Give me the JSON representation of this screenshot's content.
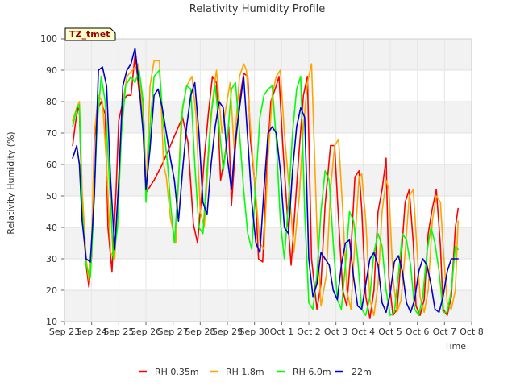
{
  "chart_data": {
    "type": "line",
    "title": "Relativity Humidity Profile",
    "xlabel": "Time",
    "ylabel": "Relativity Humidity (%)",
    "ylim": [
      10,
      100
    ],
    "yticks": [
      10,
      20,
      30,
      40,
      50,
      60,
      70,
      80,
      90,
      100
    ],
    "xlim": [
      0,
      15
    ],
    "xtick_labels": [
      "Sep 23",
      "Sep 24",
      "Sep 25",
      "Sep 26",
      "Sep 27",
      "Sep 28",
      "Sep 29",
      "Sep 30",
      "Oct 1",
      "Oct 2",
      "Oct 3",
      "Oct 4",
      "Oct 5",
      "Oct 6",
      "Oct 7",
      "Oct 8"
    ],
    "x_units": "days since Sep 23",
    "station_label": "TZ_tmet",
    "grid": "horizontal bands",
    "legend": "bottom-center",
    "series": [
      {
        "name": "RH 0.35m",
        "color": "#ff0000",
        "x": [
          0.3,
          0.4,
          0.5,
          0.55,
          0.65,
          0.8,
          0.9,
          1.0,
          1.1,
          1.2,
          1.35,
          1.5,
          1.6,
          1.75,
          1.9,
          2.0,
          2.15,
          2.3,
          2.45,
          2.6,
          2.75,
          2.9,
          3.0,
          3.3,
          3.6,
          3.9,
          4.15,
          4.35,
          4.55,
          4.75,
          4.9,
          5.05,
          5.15,
          5.3,
          5.45,
          5.6,
          5.75,
          5.9,
          6.05,
          6.15,
          6.3,
          6.45,
          6.6,
          6.75,
          6.85,
          7.0,
          7.15,
          7.3,
          7.45,
          7.6,
          7.8,
          7.9,
          8.05,
          8.2,
          8.35,
          8.5,
          8.65,
          8.8,
          8.95,
          9.1,
          9.3,
          9.45,
          9.6,
          9.8,
          9.95,
          10.1,
          10.25,
          10.4,
          10.55,
          10.7,
          10.85,
          10.95,
          11.1,
          11.25,
          11.4,
          11.55,
          11.7,
          11.85,
          11.95,
          12.1,
          12.25,
          12.4,
          12.55,
          12.7,
          12.85,
          12.95,
          13.1,
          13.25,
          13.4,
          13.55,
          13.7,
          13.85,
          13.95,
          14.1,
          14.25,
          14.4,
          14.5
        ],
        "y": [
          66,
          73,
          78,
          77,
          47,
          28,
          21,
          31,
          68,
          77,
          80,
          76,
          40,
          26,
          52,
          74,
          80,
          82,
          82,
          95,
          83,
          80,
          51,
          55,
          60,
          66,
          71,
          75,
          67,
          41,
          35,
          50,
          62,
          76,
          88,
          86,
          55,
          62,
          72,
          47,
          66,
          80,
          89,
          88,
          68,
          55,
          30,
          29,
          58,
          80,
          85,
          88,
          65,
          45,
          28,
          47,
          65,
          82,
          88,
          30,
          14,
          22,
          47,
          66,
          66,
          42,
          20,
          15,
          32,
          56,
          58,
          46,
          18,
          11,
          20,
          45,
          52,
          62,
          24,
          12,
          14,
          30,
          48,
          52,
          35,
          15,
          12,
          17,
          38,
          46,
          52,
          34,
          14,
          12,
          18,
          40,
          46
        ]
      },
      {
        "name": "RH 1.8m",
        "color": "#ffa500",
        "x": [
          0.3,
          0.45,
          0.55,
          0.65,
          0.8,
          0.9,
          1.0,
          1.1,
          1.25,
          1.4,
          1.55,
          1.7,
          1.85,
          2.0,
          2.15,
          2.3,
          2.5,
          2.7,
          2.85,
          3.0,
          3.15,
          3.3,
          3.5,
          3.65,
          3.75,
          3.9,
          4.1,
          4.3,
          4.5,
          4.7,
          4.85,
          5.0,
          5.15,
          5.3,
          5.45,
          5.6,
          5.8,
          5.95,
          6.1,
          6.25,
          6.45,
          6.6,
          6.7,
          6.85,
          7.0,
          7.2,
          7.35,
          7.5,
          7.65,
          7.8,
          7.95,
          8.1,
          8.3,
          8.45,
          8.65,
          8.8,
          8.95,
          9.1,
          9.3,
          9.45,
          9.65,
          9.8,
          9.95,
          10.1,
          10.25,
          10.4,
          10.55,
          10.7,
          10.85,
          10.95,
          11.1,
          11.25,
          11.4,
          11.55,
          11.7,
          11.85,
          11.95,
          12.1,
          12.25,
          12.4,
          12.55,
          12.7,
          12.85,
          12.95,
          13.1,
          13.25,
          13.4,
          13.55,
          13.7,
          13.85,
          13.95,
          14.1,
          14.25,
          14.4,
          14.5
        ],
        "y": [
          74,
          78,
          80,
          52,
          30,
          23,
          35,
          70,
          82,
          80,
          60,
          32,
          30,
          55,
          80,
          88,
          90,
          92,
          80,
          50,
          85,
          93,
          93,
          60,
          56,
          43,
          35,
          75,
          85,
          88,
          75,
          45,
          40,
          62,
          80,
          90,
          70,
          78,
          86,
          65,
          88,
          92,
          90,
          72,
          55,
          35,
          33,
          62,
          82,
          88,
          90,
          70,
          50,
          32,
          50,
          72,
          86,
          92,
          40,
          15,
          25,
          52,
          66,
          68,
          45,
          20,
          14,
          35,
          56,
          57,
          42,
          17,
          12,
          22,
          45,
          55,
          52,
          24,
          13,
          17,
          32,
          50,
          52,
          38,
          18,
          13,
          20,
          42,
          50,
          48,
          34,
          16,
          14,
          20,
          42
        ]
      },
      {
        "name": "RH 6.0m",
        "color": "#00ff00",
        "x": [
          0.3,
          0.45,
          0.55,
          0.65,
          0.8,
          0.95,
          1.05,
          1.2,
          1.35,
          1.5,
          1.65,
          1.8,
          1.95,
          2.1,
          2.25,
          2.45,
          2.6,
          2.75,
          2.9,
          3.0,
          3.15,
          3.3,
          3.5,
          3.65,
          3.8,
          3.9,
          4.05,
          4.2,
          4.35,
          4.5,
          4.65,
          4.8,
          4.95,
          5.1,
          5.25,
          5.4,
          5.55,
          5.7,
          5.85,
          6.0,
          6.15,
          6.3,
          6.45,
          6.6,
          6.75,
          6.9,
          7.05,
          7.2,
          7.35,
          7.5,
          7.65,
          7.8,
          7.95,
          8.1,
          8.25,
          8.4,
          8.55,
          8.7,
          8.85,
          9.0,
          9.15,
          9.3,
          9.45,
          9.6,
          9.75,
          9.9,
          10.05,
          10.2,
          10.35,
          10.5,
          10.65,
          10.8,
          10.95,
          11.1,
          11.25,
          11.4,
          11.55,
          11.7,
          11.85,
          12.0,
          12.15,
          12.3,
          12.45,
          12.6,
          12.75,
          12.9,
          13.05,
          13.2,
          13.35,
          13.5,
          13.65,
          13.8,
          13.95,
          14.1,
          14.25,
          14.4,
          14.5
        ],
        "y": [
          72,
          78,
          79,
          45,
          28,
          24,
          40,
          72,
          88,
          80,
          55,
          30,
          40,
          70,
          85,
          88,
          86,
          90,
          80,
          48,
          72,
          88,
          90,
          72,
          60,
          48,
          35,
          55,
          78,
          85,
          84,
          60,
          40,
          38,
          58,
          76,
          85,
          72,
          58,
          68,
          84,
          86,
          70,
          52,
          38,
          33,
          55,
          75,
          82,
          84,
          85,
          68,
          42,
          30,
          48,
          70,
          84,
          88,
          45,
          16,
          14,
          25,
          45,
          58,
          55,
          35,
          17,
          14,
          28,
          45,
          42,
          30,
          14,
          12,
          18,
          32,
          38,
          34,
          20,
          12,
          13,
          25,
          38,
          36,
          28,
          14,
          12,
          18,
          32,
          40,
          35,
          26,
          13,
          13,
          20,
          34,
          33
        ]
      },
      {
        "name": "22m",
        "color": "#0000cc",
        "x": [
          0.3,
          0.45,
          0.55,
          0.65,
          0.8,
          0.95,
          1.1,
          1.25,
          1.4,
          1.55,
          1.7,
          1.85,
          2.0,
          2.15,
          2.3,
          2.45,
          2.6,
          2.75,
          2.9,
          3.0,
          3.15,
          3.3,
          3.45,
          3.6,
          3.75,
          3.9,
          4.05,
          4.2,
          4.35,
          4.5,
          4.65,
          4.8,
          4.95,
          5.1,
          5.25,
          5.4,
          5.55,
          5.7,
          5.85,
          6.0,
          6.15,
          6.3,
          6.45,
          6.6,
          6.75,
          6.9,
          7.05,
          7.2,
          7.35,
          7.5,
          7.65,
          7.8,
          7.95,
          8.1,
          8.25,
          8.4,
          8.55,
          8.7,
          8.85,
          9.0,
          9.15,
          9.3,
          9.45,
          9.6,
          9.75,
          9.9,
          10.05,
          10.2,
          10.35,
          10.5,
          10.65,
          10.8,
          10.95,
          11.1,
          11.25,
          11.4,
          11.55,
          11.7,
          11.85,
          12.0,
          12.15,
          12.3,
          12.45,
          12.6,
          12.75,
          12.9,
          13.05,
          13.2,
          13.35,
          13.5,
          13.65,
          13.8,
          13.95,
          14.1,
          14.25,
          14.4,
          14.5
        ],
        "y": [
          62,
          66,
          60,
          42,
          30,
          29,
          50,
          90,
          91,
          85,
          55,
          33,
          55,
          85,
          90,
          92,
          97,
          85,
          70,
          52,
          65,
          82,
          84,
          78,
          70,
          62,
          55,
          42,
          58,
          72,
          82,
          86,
          70,
          48,
          44,
          60,
          72,
          80,
          78,
          62,
          52,
          68,
          78,
          88,
          68,
          48,
          35,
          32,
          52,
          70,
          72,
          70,
          58,
          40,
          38,
          58,
          72,
          78,
          75,
          30,
          18,
          22,
          32,
          30,
          28,
          20,
          17,
          28,
          35,
          36,
          24,
          15,
          14,
          22,
          30,
          32,
          28,
          16,
          13,
          19,
          29,
          31,
          26,
          16,
          13,
          17,
          26,
          30,
          28,
          22,
          14,
          13,
          18,
          26,
          30,
          30,
          30
        ]
      }
    ]
  }
}
